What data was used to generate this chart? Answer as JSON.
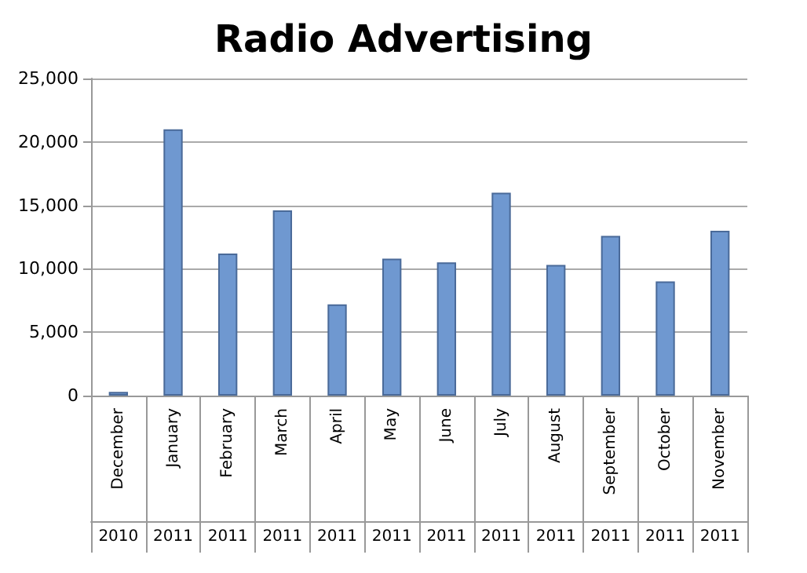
{
  "chart_data": {
    "type": "bar",
    "title": "Radio Advertising",
    "categories": [
      "December 2010",
      "January 2011",
      "February 2011",
      "March 2011",
      "April 2011",
      "May 2011",
      "June 2011",
      "July 2011",
      "August 2011",
      "September 2011",
      "October 2011",
      "November 2011"
    ],
    "values": [
      300,
      21000,
      11200,
      14600,
      7200,
      10800,
      10500,
      16000,
      10300,
      12600,
      9000,
      13000
    ],
    "color": "#6f98d0",
    "ylim": [
      0,
      25000
    ],
    "yticks": [
      0,
      {
        "value": 5000,
        "label": "5,000"
      },
      {
        "value": 10000,
        "label": "10,000"
      },
      {
        "value": 15000,
        "label": "15,000"
      },
      {
        "value": 20000,
        "label": "20,000"
      },
      {
        "value": 25000,
        "label": "25,000"
      }
    ],
    "grid": "y"
  }
}
